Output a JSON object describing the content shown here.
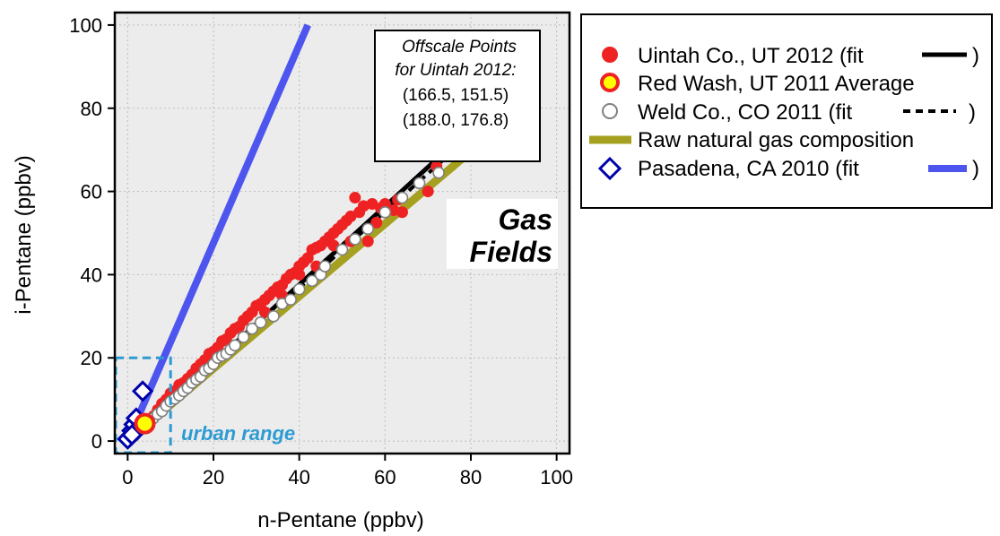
{
  "chart_data": {
    "type": "scatter",
    "xlabel": "n-Pentane (ppbv)",
    "ylabel": "i-Pentane (ppbv)",
    "xlim": [
      -3,
      103
    ],
    "ylim": [
      -3,
      103
    ],
    "x_ticks": [
      0,
      20,
      40,
      60,
      80,
      100
    ],
    "y_ticks": [
      0,
      20,
      40,
      60,
      80,
      100
    ],
    "grid": true,
    "legend_position": "outside-right",
    "series": [
      {
        "name": "Uintah Co., UT  2012 (fit",
        "marker": "filled-circle",
        "color": "#ee2222",
        "fit_label": ")",
        "fit_style": "solid-black",
        "fit_points": [
          [
            0,
            0
          ],
          [
            75.5,
            71
          ]
        ],
        "points": [
          [
            1,
            1
          ],
          [
            2,
            2.2
          ],
          [
            3,
            3
          ],
          [
            4,
            4.5
          ],
          [
            5,
            5.2
          ],
          [
            6,
            6
          ],
          [
            7,
            7.5
          ],
          [
            8,
            9
          ],
          [
            9,
            10
          ],
          [
            10,
            11.5
          ],
          [
            11,
            12
          ],
          [
            12,
            13.5
          ],
          [
            13,
            14
          ],
          [
            14,
            15
          ],
          [
            15,
            16
          ],
          [
            16,
            17.5
          ],
          [
            17,
            18.5
          ],
          [
            18,
            19.5
          ],
          [
            19,
            21
          ],
          [
            20,
            21.5
          ],
          [
            21,
            22.5
          ],
          [
            22,
            24
          ],
          [
            23,
            24.5
          ],
          [
            24,
            26
          ],
          [
            25,
            27
          ],
          [
            26,
            27.5
          ],
          [
            27,
            29
          ],
          [
            28,
            30
          ],
          [
            29,
            31
          ],
          [
            30,
            32.5
          ],
          [
            31,
            33
          ],
          [
            32,
            34
          ],
          [
            33,
            35
          ],
          [
            34,
            36
          ],
          [
            35,
            37
          ],
          [
            36,
            37.5
          ],
          [
            37,
            39
          ],
          [
            38,
            40
          ],
          [
            39,
            40.5
          ],
          [
            40,
            42
          ],
          [
            41,
            43
          ],
          [
            42,
            44
          ],
          [
            43,
            46
          ],
          [
            44,
            46.5
          ],
          [
            45,
            47
          ],
          [
            46,
            48
          ],
          [
            47,
            49
          ],
          [
            48,
            50
          ],
          [
            49,
            51
          ],
          [
            50,
            52
          ],
          [
            51,
            53
          ],
          [
            52,
            54
          ],
          [
            53,
            58.5
          ],
          [
            54,
            55
          ],
          [
            55,
            56.5
          ],
          [
            57,
            57
          ],
          [
            58,
            52.5
          ],
          [
            59,
            56
          ],
          [
            60,
            57
          ],
          [
            62,
            55.5
          ],
          [
            63,
            58
          ],
          [
            64,
            55
          ],
          [
            70,
            60
          ],
          [
            72,
            66
          ],
          [
            52,
            48
          ],
          [
            56,
            48
          ],
          [
            48,
            47
          ],
          [
            44,
            42
          ],
          [
            40,
            40
          ],
          [
            36,
            35
          ],
          [
            32,
            31
          ]
        ]
      },
      {
        "name": "Red Wash, UT 2011 Average",
        "marker": "yellow-circle-red-edge",
        "color": "#ffff00",
        "edge_color": "#ee2222",
        "points": [
          [
            4,
            4.2
          ]
        ]
      },
      {
        "name": "Weld Co., CO 2011 (fit",
        "marker": "open-circle",
        "color": "#808080",
        "fit_label": ")",
        "fit_style": "dashed-black",
        "fit_points": [
          [
            0,
            0
          ],
          [
            86,
            79
          ]
        ],
        "points": [
          [
            0,
            0
          ],
          [
            0.5,
            0.5
          ],
          [
            1,
            1
          ],
          [
            1.5,
            1.3
          ],
          [
            2,
            2
          ],
          [
            3,
            2.8
          ],
          [
            4,
            3.5
          ],
          [
            5,
            4.5
          ],
          [
            6,
            5.5
          ],
          [
            7,
            6.5
          ],
          [
            8,
            7.2
          ],
          [
            9,
            8.5
          ],
          [
            10,
            9.5
          ],
          [
            11,
            10.2
          ],
          [
            12,
            11
          ],
          [
            13,
            12
          ],
          [
            14,
            12.8
          ],
          [
            15,
            14
          ],
          [
            16,
            14.8
          ],
          [
            17,
            15.5
          ],
          [
            18,
            17
          ],
          [
            19,
            17.5
          ],
          [
            20,
            18.5
          ],
          [
            21,
            20
          ],
          [
            22,
            20.5
          ],
          [
            23,
            21
          ],
          [
            24,
            22
          ],
          [
            25,
            23
          ],
          [
            27,
            25
          ],
          [
            29,
            27
          ],
          [
            31,
            28.5
          ],
          [
            34,
            30
          ],
          [
            36,
            33
          ],
          [
            38,
            34
          ],
          [
            40,
            36.5
          ],
          [
            43,
            38.5
          ],
          [
            45,
            40
          ],
          [
            46,
            42
          ],
          [
            50,
            46
          ],
          [
            53,
            48.5
          ],
          [
            56,
            51
          ],
          [
            60,
            55
          ],
          [
            64,
            58.5
          ],
          [
            68,
            62
          ],
          [
            72.5,
            64.5
          ],
          [
            76,
            70
          ]
        ]
      },
      {
        "name": "Raw natural gas composition",
        "marker": "line",
        "color": "#a6a020",
        "line_points": [
          [
            0,
            0
          ],
          [
            85,
            74
          ]
        ]
      },
      {
        "name": "Pasadena, CA 2010 (fit",
        "marker": "open-diamond",
        "color": "#0000aa",
        "fit_label": ")",
        "fit_style": "solid-blue",
        "fit_color": "#4d55ee",
        "fit_points": [
          [
            0,
            0
          ],
          [
            42,
            100
          ]
        ],
        "points": [
          [
            0.5,
            1
          ],
          [
            1,
            2.5
          ],
          [
            1.5,
            4
          ],
          [
            2,
            5.5
          ],
          [
            3.5,
            12
          ],
          [
            2.5,
            3
          ],
          [
            0,
            0.5
          ],
          [
            1,
            1.5
          ]
        ]
      }
    ],
    "annotations": {
      "offscale_title_1": "Offscale Points",
      "offscale_title_2": "for Uintah 2012:",
      "offscale_point_1": "(166.5, 151.5)",
      "offscale_point_2": "(188.0, 176.8)",
      "gas_line_1": "Gas",
      "gas_line_2": "Fields",
      "urban_label": "urban range",
      "urban_box": [
        [
          -3,
          -3
        ],
        [
          10,
          20
        ]
      ]
    }
  },
  "colors": {
    "plot_background": "#ececec",
    "grid": "#bdbdbd",
    "uintah_red": "#ee2222",
    "raw_gas_olive": "#a6a020",
    "pasadena_line": "#4d55ee",
    "pasadena_marker": "#0000aa",
    "urban_box": "#2d9bd3"
  }
}
